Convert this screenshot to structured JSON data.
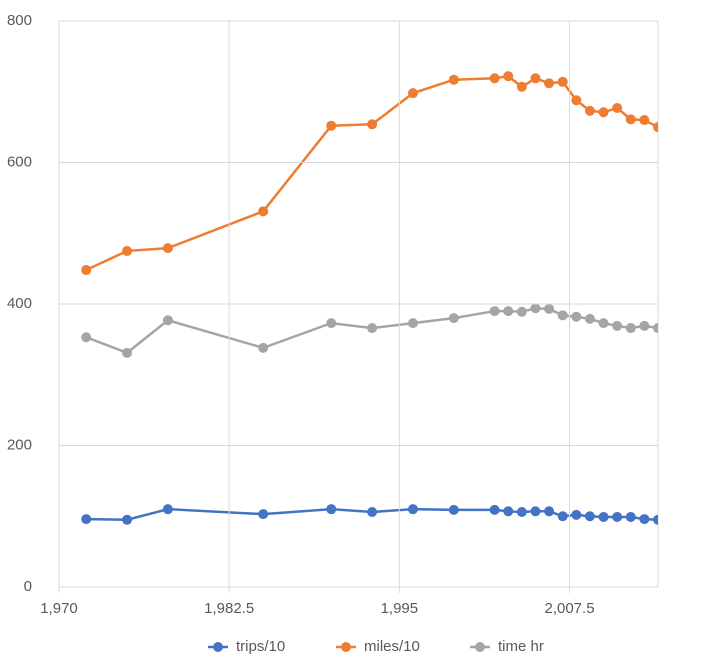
{
  "chart_data": {
    "type": "line",
    "x": [
      1972,
      1975,
      1978,
      1985,
      1990,
      1993,
      1996,
      1999,
      2002,
      2003,
      2004,
      2005,
      2006,
      2007,
      2008,
      2009,
      2010,
      2011,
      2012,
      2013,
      2014
    ],
    "series": [
      {
        "name": "trips/10",
        "color": "#4472c4",
        "values": [
          96,
          95,
          110,
          103,
          110,
          106,
          110,
          109,
          109,
          107,
          106,
          107,
          107,
          100,
          102,
          100,
          99,
          99,
          99,
          96,
          95
        ]
      },
      {
        "name": "miles/10",
        "color": "#ed7d31",
        "values": [
          448,
          475,
          479,
          531,
          652,
          654,
          698,
          717,
          719,
          722,
          707,
          719,
          712,
          714,
          688,
          673,
          671,
          677,
          661,
          660,
          650
        ]
      },
      {
        "name": "time hr",
        "color": "#a5a5a5",
        "values": [
          353,
          331,
          377,
          338,
          373,
          366,
          373,
          380,
          390,
          390,
          389,
          394,
          393,
          384,
          382,
          379,
          373,
          369,
          366,
          369,
          366
        ]
      }
    ],
    "xlim": [
      1970,
      2014
    ],
    "xticks": [
      {
        "value": 1970,
        "label": "1,970"
      },
      {
        "value": 1982.5,
        "label": "1,982.5"
      },
      {
        "value": 1995,
        "label": "1,995"
      },
      {
        "value": 2007.5,
        "label": "2,007.5"
      }
    ],
    "ylim": [
      0,
      800
    ],
    "yticks": [
      0,
      200,
      400,
      600,
      800
    ],
    "grid": true,
    "legend": "bottom"
  }
}
